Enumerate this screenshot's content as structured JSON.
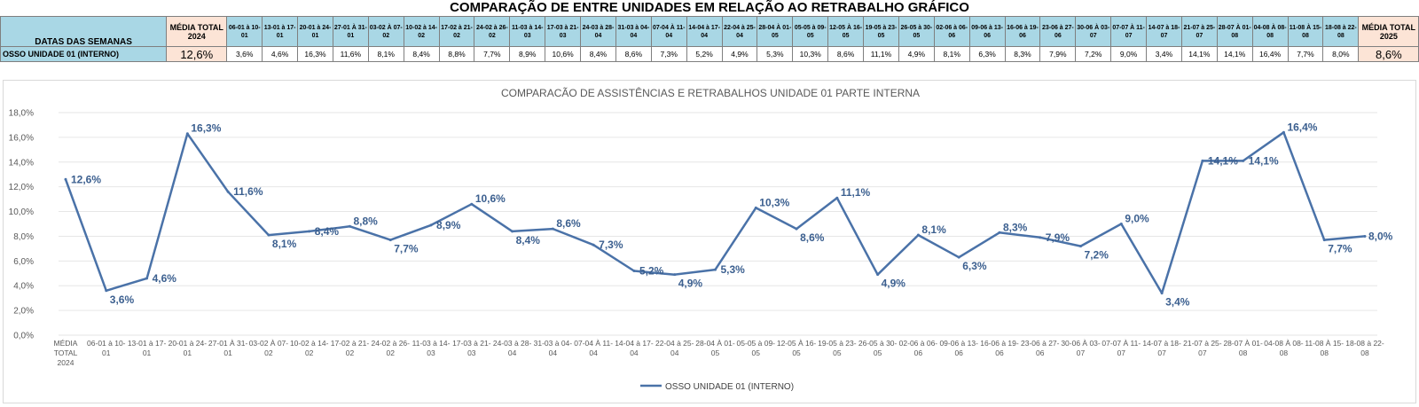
{
  "header": {
    "title": "COMPARAÇÃO DE ENTRE UNIDADES EM RELAÇÃO AO RETRABALHO GRÁFICO",
    "row_label": "DATAS DAS SEMANAS",
    "avg_2024_label": "MÉDIA TOTAL 2024",
    "avg_2025_label": "MÉDIA TOTAL 2025",
    "weeks": [
      "06-01 à 10-01",
      "13-01 à 17-01",
      "20-01 à 24-01",
      "27-01 À 31-01",
      "03-02 À 07-02",
      "10-02 à 14-02",
      "17-02 à 21-02",
      "24-02 à 26-02",
      "11-03 à 14-03",
      "17-03 à 21-03",
      "24-03 à 28-04",
      "31-03 à 04-04",
      "07-04 À 11-04",
      "14-04 à 17-04",
      "22-04 à 25-04",
      "28-04 À 01-05",
      "05-05 à 09-05",
      "12-05 À 16-05",
      "19-05 à 23-05",
      "26-05 à 30-05",
      "02-06 à 06-06",
      "09-06 à 13-06",
      "16-06 à 19-06",
      "23-06 à 27-06",
      "30-06 À 03-07",
      "07-07 À 11-07",
      "14-07 à 18-07",
      "21-07 à 25-07",
      "28-07 À 01-08",
      "04-08 À 08-08",
      "11-08 À 15-08",
      "18-08 à 22-08"
    ],
    "unit_label": "OSSO UNIDADE 01 (INTERNO)",
    "avg_2024_value": "12,6%",
    "avg_2025_value": "8,6%",
    "week_values": [
      "3,6%",
      "4,6%",
      "16,3%",
      "11,6%",
      "8,1%",
      "8,4%",
      "8,8%",
      "7,7%",
      "8,9%",
      "10,6%",
      "8,4%",
      "8,6%",
      "7,3%",
      "5,2%",
      "4,9%",
      "5,3%",
      "10,3%",
      "8,6%",
      "11,1%",
      "4,9%",
      "8,1%",
      "6,3%",
      "8,3%",
      "7,9%",
      "7,2%",
      "9,0%",
      "3,4%",
      "14,1%",
      "14,1%",
      "16,4%",
      "7,7%",
      "8,0%"
    ]
  },
  "chart_data": {
    "type": "line",
    "title": "COMPARACÃO DE ASSISTÊNCIAS E RETRABALHOS UNIDADE 01 PARTE INTERNA",
    "xlabel": "",
    "ylabel": "",
    "ylim": [
      0,
      18
    ],
    "yticks": [
      "0,0%",
      "2,0%",
      "4,0%",
      "6,0%",
      "8,0%",
      "10,0%",
      "12,0%",
      "14,0%",
      "16,0%",
      "18,0%"
    ],
    "grid": true,
    "legend_position": "bottom",
    "categories": [
      "MÉDIA TOTAL 2024",
      "06-01 à 10-01",
      "13-01 à 17-01",
      "20-01 à 24-01",
      "27-01 À 31-01",
      "03-02 À 07-02",
      "10-02 à 14-02",
      "17-02 à 21-02",
      "24-02 à 26-02",
      "11-03 à 14-03",
      "17-03 à 21-03",
      "24-03 à 28-04",
      "31-03 à 04-04",
      "07-04 À 11-04",
      "14-04 à 17-04",
      "22-04 à 25-04",
      "28-04 À 01-05",
      "05-05 à 09-05",
      "12-05 À 16-05",
      "19-05 à 23-05",
      "26-05 à 30-05",
      "02-06 à 06-06",
      "09-06 à 13-06",
      "16-06 à 19-06",
      "23-06 à 27-06",
      "30-06 À 03-07",
      "07-07 À 11-07",
      "14-07 à 18-07",
      "21-07 à 25-07",
      "28-07 À 01-08",
      "04-08 À 08-08",
      "11-08 À 15-08",
      "18-08 à 22-08"
    ],
    "series": [
      {
        "name": "OSSO UNIDADE 01 (INTERNO)",
        "color": "#4a72a8",
        "values": [
          12.6,
          3.6,
          4.6,
          16.3,
          11.6,
          8.1,
          8.4,
          8.8,
          7.7,
          8.9,
          10.6,
          8.4,
          8.6,
          7.3,
          5.2,
          4.9,
          5.3,
          10.3,
          8.6,
          11.1,
          4.9,
          8.1,
          6.3,
          8.3,
          7.9,
          7.2,
          9.0,
          3.4,
          14.1,
          14.1,
          16.4,
          7.7,
          8.0
        ],
        "labels": [
          "12,6%",
          "3,6%",
          "4,6%",
          "16,3%",
          "11,6%",
          "8,1%",
          "8,4%",
          "8,8%",
          "7,7%",
          "8,9%",
          "10,6%",
          "8,4%",
          "8,6%",
          "7,3%",
          "5,2%",
          "4,9%",
          "5,3%",
          "10,3%",
          "8,6%",
          "11,1%",
          "4,9%",
          "8,1%",
          "6,3%",
          "8,3%",
          "7,9%",
          "7,2%",
          "9,0%",
          "3,4%",
          "14,1%",
          "14,1%",
          "16,4%",
          "7,7%",
          "8,0%"
        ]
      }
    ]
  }
}
